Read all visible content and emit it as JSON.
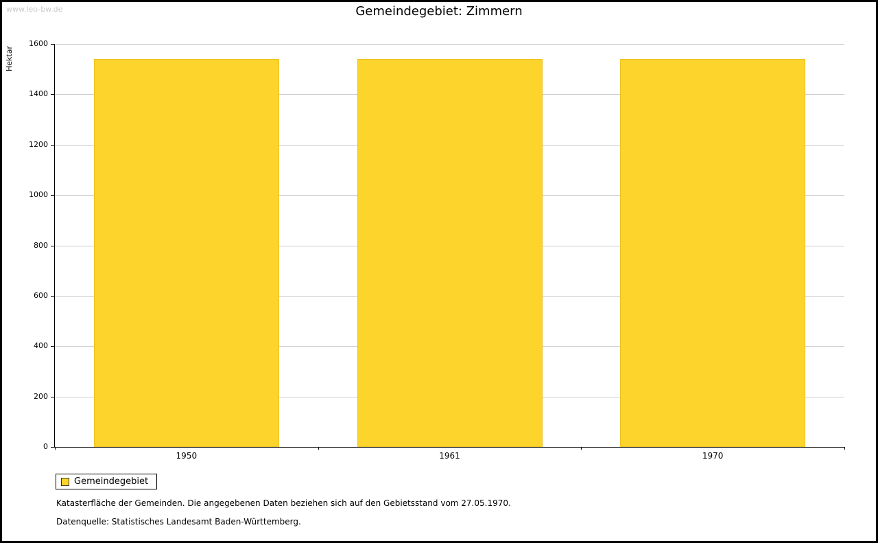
{
  "watermark": "www.leo-bw.de",
  "title": "Gemeindegebiet: Zimmern",
  "chart_data": {
    "type": "bar",
    "title": "Gemeindegebiet: Zimmern",
    "categories": [
      "1950",
      "1961",
      "1970"
    ],
    "values": [
      1541,
      1541,
      1541
    ],
    "xlabel": "",
    "ylabel": "Hektar",
    "ylim": [
      0,
      1600
    ],
    "ytick_step": 200,
    "grid": true,
    "bar_color": "#FCD42C",
    "bar_border_color": "#EDC122",
    "grid_color": "#cccccc",
    "axis_color": "#000000",
    "legend_position": "bottom-left"
  },
  "legend": {
    "label": "Gemeindegebiet"
  },
  "footnotes": {
    "line1": "Katasterfläche der Gemeinden. Die angegebenen Daten beziehen sich auf den Gebietsstand vom 27.05.1970.",
    "line2": "Datenquelle: Statistisches Landesamt Baden-Württemberg."
  }
}
